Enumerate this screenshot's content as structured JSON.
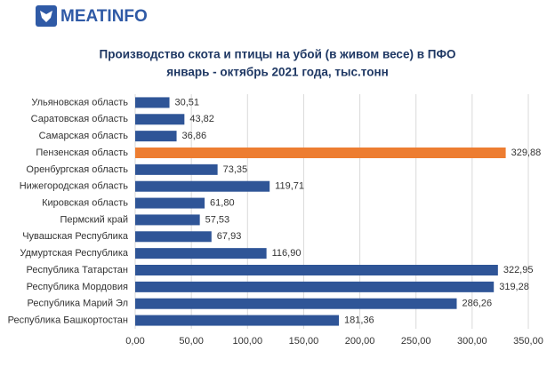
{
  "logo": "MEATINFO",
  "chart_data": {
    "type": "bar",
    "orientation": "horizontal",
    "title": "Производство скота и птицы на убой (в живом весе) в ПФО",
    "subtitle": "январь - октябрь 2021 года, тыс.тонн",
    "categories": [
      "Ульяновская область",
      "Саратовская область",
      "Самарская область",
      "Пензенская область",
      "Оренбургская область",
      "Нижегородская область",
      "Кировская область",
      "Пермский край",
      "Чувашская Республика",
      "Удмуртская Республика",
      "Республика Татарстан",
      "Республика Мордовия",
      "Республика Марий Эл",
      "Республика Башкортостан"
    ],
    "values": [
      30.51,
      43.82,
      36.86,
      329.88,
      73.35,
      119.71,
      61.8,
      57.53,
      67.93,
      116.9,
      322.95,
      319.28,
      286.26,
      181.36
    ],
    "value_labels": [
      "30,51",
      "43,82",
      "36,86",
      "329,88",
      "73,35",
      "119,71",
      "61,80",
      "57,53",
      "67,93",
      "116,90",
      "322,95",
      "319,28",
      "286,26",
      "181,36"
    ],
    "colors": [
      "#2f5597",
      "#2f5597",
      "#2f5597",
      "#ed7d31",
      "#2f5597",
      "#2f5597",
      "#2f5597",
      "#2f5597",
      "#2f5597",
      "#2f5597",
      "#2f5597",
      "#2f5597",
      "#2f5597",
      "#2f5597"
    ],
    "xlim": [
      0,
      350
    ],
    "xticks": [
      {
        "value": 0,
        "label": "0,00"
      },
      {
        "value": 50,
        "label": "50,00"
      },
      {
        "value": 100,
        "label": "100,00"
      },
      {
        "value": 150,
        "label": "150,00"
      },
      {
        "value": 200,
        "label": "200,00"
      },
      {
        "value": 250,
        "label": "250,00"
      },
      {
        "value": 300,
        "label": "300,00"
      },
      {
        "value": 350,
        "label": "350,00"
      }
    ],
    "grid": true
  }
}
